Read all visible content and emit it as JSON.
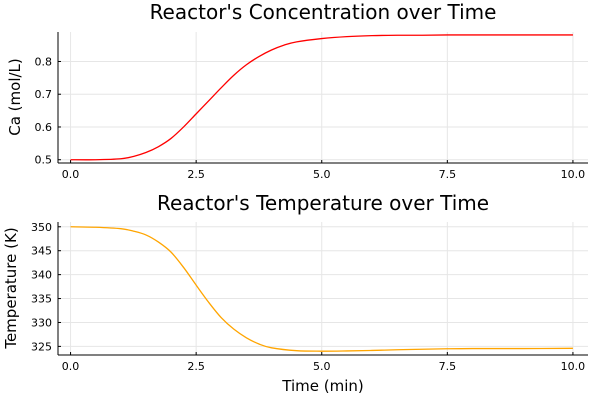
{
  "chart_data": [
    {
      "type": "line",
      "title": "Reactor's Concentration over Time",
      "xlabel": "",
      "ylabel": "Ca (mol/L)",
      "xlim": [
        -0.25,
        10.3
      ],
      "ylim": [
        0.49,
        0.89
      ],
      "xticks": [
        0,
        2.5,
        5,
        7.5,
        10
      ],
      "xtick_labels": [
        "0.0",
        "2.5",
        "5.0",
        "7.5",
        "10.0"
      ],
      "yticks": [
        0.5,
        0.6,
        0.7,
        0.8
      ],
      "ytick_labels": [
        "0.5",
        "0.6",
        "0.7",
        "0.8"
      ],
      "grid": true,
      "legend": false,
      "color": "#ff0000",
      "series": [
        {
          "x": [
            0,
            0.5,
            1.0,
            1.25,
            1.5,
            1.75,
            2.0,
            2.25,
            2.5,
            2.75,
            3.0,
            3.25,
            3.5,
            3.75,
            4.0,
            4.25,
            4.5,
            5.0,
            5.5,
            6.0,
            6.5,
            7.0,
            7.5,
            8.0,
            9.0,
            10.0
          ],
          "y": [
            0.5,
            0.5,
            0.503,
            0.51,
            0.522,
            0.54,
            0.565,
            0.6,
            0.64,
            0.68,
            0.72,
            0.758,
            0.79,
            0.815,
            0.835,
            0.85,
            0.86,
            0.87,
            0.876,
            0.879,
            0.88,
            0.88,
            0.881,
            0.881,
            0.881,
            0.881
          ]
        }
      ]
    },
    {
      "type": "line",
      "title": "Reactor's Temperature over Time",
      "xlabel": "Time (min)",
      "ylabel": "Temperature (K)",
      "xlim": [
        -0.25,
        10.3
      ],
      "ylim": [
        323.2,
        351
      ],
      "xticks": [
        0,
        2.5,
        5,
        7.5,
        10
      ],
      "xtick_labels": [
        "0.0",
        "2.5",
        "5.0",
        "7.5",
        "10.0"
      ],
      "yticks": [
        325,
        330,
        335,
        340,
        345,
        350
      ],
      "ytick_labels": [
        "325",
        "330",
        "335",
        "340",
        "345",
        "350"
      ],
      "grid": true,
      "legend": false,
      "color": "#ffa500",
      "series": [
        {
          "x": [
            0,
            0.5,
            1.0,
            1.25,
            1.5,
            1.75,
            2.0,
            2.25,
            2.5,
            2.75,
            3.0,
            3.25,
            3.5,
            3.75,
            4.0,
            4.5,
            5.0,
            5.5,
            6.0,
            6.5,
            7.0,
            7.5,
            8.0,
            9.0,
            10.0
          ],
          "y": [
            350,
            349.9,
            349.6,
            349.1,
            348.3,
            346.8,
            344.7,
            341.5,
            337.8,
            334.2,
            331.0,
            328.6,
            326.8,
            325.5,
            324.7,
            324.1,
            324.0,
            324.05,
            324.15,
            324.3,
            324.4,
            324.5,
            324.55,
            324.55,
            324.6
          ]
        }
      ]
    }
  ]
}
